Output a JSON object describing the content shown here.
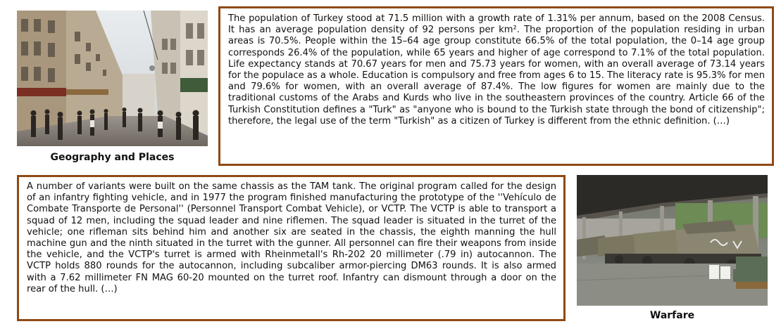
{
  "panels": [
    {
      "caption": "Geography and Places",
      "text": "The population of Turkey stood at 71.5 million with a growth rate of 1.31% per annum, based on the 2008 Census. It has an average population density of 92 persons per km². The proportion of the population residing in urban areas is 70.5%. People within the 15–64 age group constitute 66.5% of the total population, the 0–14 age group corresponds 26.4% of the population, while 65 years and higher of age correspond to 7.1% of the total population. Life expectancy stands at 70.67 years for men and 75.73 years for women, with an overall average of 73.14 years for the populace as a whole. Education is compulsory and free from ages 6 to 15. The literacy rate is 95.3% for men and 79.6% for women, with an overall average of 87.4%. The low figures for women are mainly due to the traditional customs of the Arabs and Kurds who live in the southeastern provinces of the country. Article 66 of the Turkish Constitution defines a \"Turk\" as \"anyone who is bound to the Turkish state through the bond of citizenship\"; therefore, the legal use of the term \"Turkish\" as a citizen of Turkey is different from the ethnic definition. (…)"
    },
    {
      "caption": "Warfare",
      "text": "A number of variants were built on the same chassis as the TAM tank. The original program called for the design of an infantry fighting vehicle, and in 1977 the program finished manufacturing the prototype of the ''Vehículo de Combate Transporte de Personal'' (Personnel Transport Combat Vehicle), or VCTP. The VCTP is able to transport a squad of 12 men, including the squad leader and nine riflemen. The squad leader is situated in the turret of the vehicle; one rifleman sits behind him and another six are seated in the chassis, the eighth manning the hull machine gun and the ninth situated in the turret with the gunner. All personnel can fire their weapons from inside the vehicle, and the VCTP's turret is armed with Rheinmetall's Rh-202 20 millimeter (.79 in) autocannon. The VCTP holds 880 rounds for the autocannon, including subcaliber armor-piercing DM63 rounds. It is also armed with a 7.62 millimeter FN MAG 60-20 mounted on the turret roof. Infantry can dismount through a door on the rear of the hull. (…)"
    }
  ],
  "colors": {
    "border": "#8e4a16",
    "text": "#111111",
    "background": "#ffffff"
  }
}
